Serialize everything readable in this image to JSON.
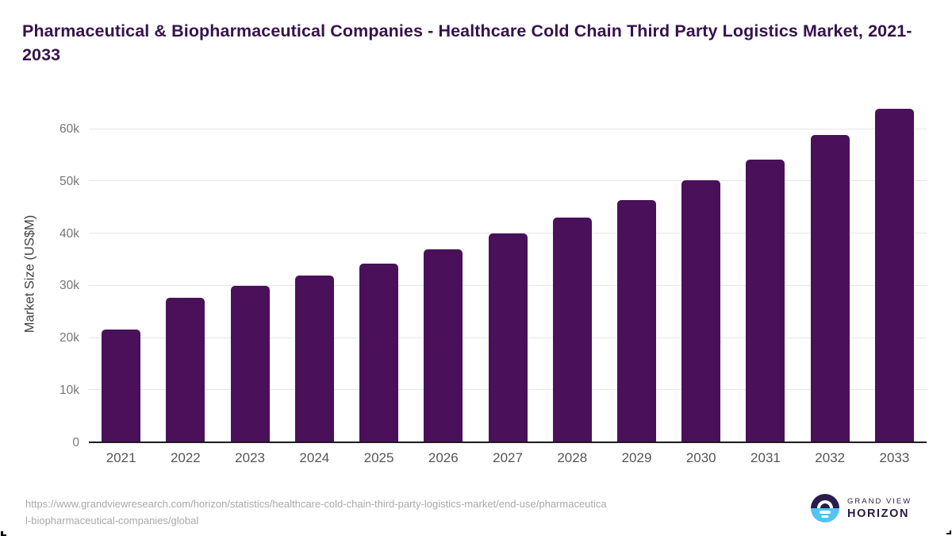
{
  "header": {
    "title": "Pharmaceutical & Biopharmaceutical Companies - Healthcare Cold Chain Third Party Logistics Market, 2021-2033",
    "title_color": "#37124D"
  },
  "chart_data": {
    "type": "bar",
    "title": "Pharmaceutical & Biopharmaceutical Companies - Healthcare Cold Chain Third Party Logistics Market, 2021-2033",
    "categories": [
      "2021",
      "2022",
      "2023",
      "2024",
      "2025",
      "2026",
      "2027",
      "2028",
      "2029",
      "2030",
      "2031",
      "2032",
      "2033"
    ],
    "values": [
      21600,
      27700,
      30000,
      32000,
      34300,
      37000,
      40000,
      43000,
      46400,
      50200,
      54200,
      58800,
      63900
    ],
    "xlabel": "",
    "ylabel": "Market Size (US$M)",
    "units": "US$M",
    "ylim": [
      0,
      64500
    ],
    "yticks": [
      {
        "label": "0",
        "value": 0
      },
      {
        "label": "10k",
        "value": 10000
      },
      {
        "label": "20k",
        "value": 20000
      },
      {
        "label": "30k",
        "value": 30000
      },
      {
        "label": "40k",
        "value": 40000
      },
      {
        "label": "50k",
        "value": 50000
      },
      {
        "label": "60k",
        "value": 60000
      }
    ],
    "grid": true,
    "legend": "none",
    "bar_color": "#4A105A"
  },
  "footer": {
    "source_url_lines": [
      "https://www.grandviewresearch.com/horizon/statistics/healthcare-cold-chain-third-party-logistics-market/end-use/pharmaceutica",
      "l-biopharmaceutical-companies/global"
    ],
    "logo": {
      "top": "GRAND VIEW",
      "bottom": "HORIZON",
      "dark_color": "#2A1C4D",
      "blue_color": "#54C2F2"
    }
  }
}
